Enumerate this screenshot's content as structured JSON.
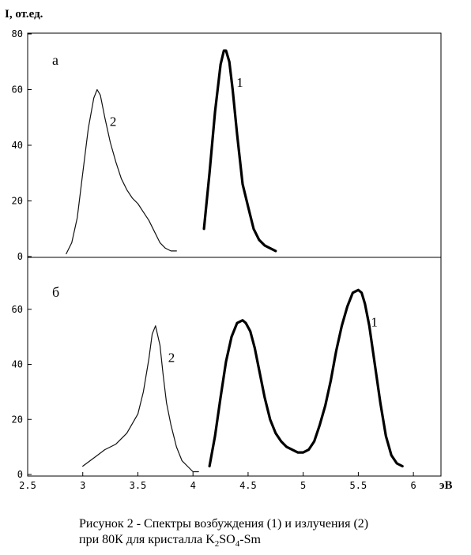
{
  "chart_data": {
    "type": "line",
    "ylabel": "I, от.ед.",
    "xlabel": "эВ",
    "xlim": [
      2.5,
      6.25
    ],
    "ylim": [
      0,
      80
    ],
    "x_ticks": [
      "2.5",
      "3",
      "3.5",
      "4",
      "4.5",
      "5",
      "5.5",
      "6"
    ],
    "grid": false,
    "panels": [
      {
        "panel": "а",
        "y_ticks": [
          "80",
          "60",
          "40",
          "20",
          "0"
        ],
        "series": [
          {
            "name": "2",
            "x": [
              2.85,
              2.9,
              2.95,
              3.0,
              3.05,
              3.1,
              3.13,
              3.16,
              3.2,
              3.25,
              3.3,
              3.35,
              3.4,
              3.45,
              3.5,
              3.55,
              3.6,
              3.65,
              3.7,
              3.75,
              3.8,
              3.85
            ],
            "y": [
              1,
              5,
              14,
              30,
              46,
              57,
              60,
              58,
              50,
              41,
              34,
              28,
              24,
              21,
              19,
              16,
              13,
              9,
              5,
              3,
              2,
              2
            ]
          },
          {
            "name": "1",
            "x": [
              4.1,
              4.15,
              4.2,
              4.25,
              4.28,
              4.3,
              4.33,
              4.36,
              4.4,
              4.45,
              4.5,
              4.55,
              4.6,
              4.65,
              4.7,
              4.75
            ],
            "y": [
              10,
              30,
              52,
              69,
              74,
              74,
              70,
              60,
              44,
              26,
              18,
              10,
              6,
              4,
              3,
              2
            ]
          }
        ]
      },
      {
        "panel": "б",
        "y_ticks": [
          "60",
          "40",
          "20",
          "0"
        ],
        "series": [
          {
            "name": "2",
            "x": [
              3.0,
              3.1,
              3.2,
              3.3,
              3.4,
              3.5,
              3.55,
              3.6,
              3.63,
              3.66,
              3.7,
              3.73,
              3.76,
              3.8,
              3.85,
              3.9,
              3.95,
              4.0,
              4.05
            ],
            "y": [
              3,
              6,
              9,
              11,
              15,
              22,
              30,
              42,
              51,
              54,
              47,
              36,
              26,
              18,
              10,
              5,
              3,
              1,
              1
            ]
          },
          {
            "name": "1",
            "x": [
              4.15,
              4.2,
              4.25,
              4.3,
              4.35,
              4.4,
              4.45,
              4.48,
              4.52,
              4.56,
              4.6,
              4.65,
              4.7,
              4.75,
              4.8,
              4.85,
              4.9,
              4.95,
              5.0,
              5.05,
              5.1,
              5.15,
              5.2,
              5.25,
              5.3,
              5.35,
              5.4,
              5.45,
              5.5,
              5.53,
              5.56,
              5.6,
              5.65,
              5.7,
              5.75,
              5.8,
              5.85,
              5.9
            ],
            "y": [
              3,
              14,
              28,
              41,
              50,
              55,
              56,
              55,
              52,
              46,
              38,
              28,
              20,
              15,
              12,
              10,
              9,
              8,
              8,
              9,
              12,
              18,
              25,
              34,
              45,
              54,
              61,
              66,
              67,
              66,
              62,
              54,
              40,
              26,
              14,
              7,
              4,
              3
            ]
          }
        ]
      }
    ]
  },
  "caption": {
    "line1": "Рисунок 2 - Спектры возбуждения (1) и излучения (2)",
    "line2_prefix": "при 80К для кристалла K",
    "sub1": "2",
    "line2_mid": "SO",
    "sub2": "4",
    "line2_suffix": "-Sm"
  }
}
